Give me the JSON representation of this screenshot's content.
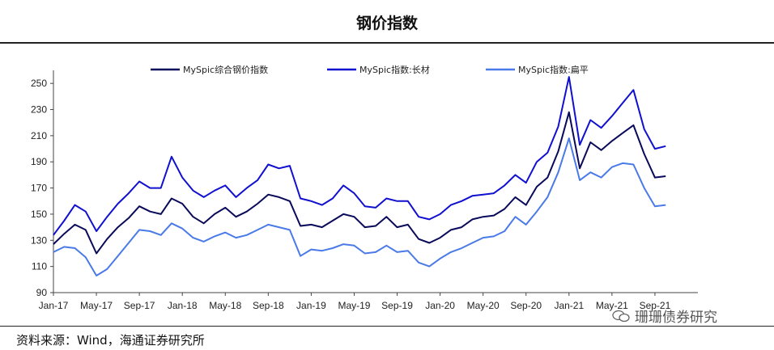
{
  "header": {
    "title": "钢价指数"
  },
  "footer": {
    "source": "资料来源：Wind，海通证券研究所",
    "watermark": "珊珊债券研究"
  },
  "chart_data": {
    "type": "line",
    "title": "钢价指数",
    "ylim": [
      90,
      260
    ],
    "yticks": [
      90,
      110,
      130,
      150,
      170,
      190,
      210,
      230,
      250
    ],
    "xticks": [
      "Jan-17",
      "May-17",
      "Sep-17",
      "Jan-18",
      "May-18",
      "Sep-18",
      "Jan-19",
      "May-19",
      "Sep-19",
      "Jan-20",
      "May-20",
      "Sep-20",
      "Jan-21",
      "May-21",
      "Sep-21"
    ],
    "xrange": [
      0,
      60
    ],
    "legend_position": "top",
    "series": [
      {
        "name": "MySpic综合钢价指数",
        "color": "#0a0a5a",
        "points": [
          [
            0,
            127
          ],
          [
            1,
            135
          ],
          [
            2,
            142
          ],
          [
            3,
            138
          ],
          [
            4,
            120
          ],
          [
            5,
            131
          ],
          [
            6,
            140
          ],
          [
            7,
            147
          ],
          [
            8,
            156
          ],
          [
            9,
            152
          ],
          [
            10,
            150
          ],
          [
            11,
            162
          ],
          [
            12,
            158
          ],
          [
            13,
            148
          ],
          [
            14,
            143
          ],
          [
            15,
            150
          ],
          [
            16,
            155
          ],
          [
            17,
            148
          ],
          [
            18,
            152
          ],
          [
            19,
            158
          ],
          [
            20,
            165
          ],
          [
            21,
            163
          ],
          [
            22,
            160
          ],
          [
            23,
            141
          ],
          [
            24,
            142
          ],
          [
            25,
            140
          ],
          [
            26,
            145
          ],
          [
            27,
            150
          ],
          [
            28,
            148
          ],
          [
            29,
            140
          ],
          [
            30,
            141
          ],
          [
            31,
            148
          ],
          [
            32,
            140
          ],
          [
            33,
            142
          ],
          [
            34,
            131
          ],
          [
            35,
            128
          ],
          [
            36,
            132
          ],
          [
            37,
            138
          ],
          [
            38,
            140
          ],
          [
            39,
            146
          ],
          [
            40,
            148
          ],
          [
            41,
            149
          ],
          [
            42,
            154
          ],
          [
            43,
            163
          ],
          [
            44,
            157
          ],
          [
            45,
            171
          ],
          [
            46,
            178
          ],
          [
            47,
            198
          ],
          [
            48,
            228
          ],
          [
            49,
            185
          ],
          [
            50,
            205
          ],
          [
            51,
            199
          ],
          [
            52,
            206
          ],
          [
            53,
            212
          ],
          [
            54,
            218
          ],
          [
            55,
            196
          ],
          [
            56,
            178
          ],
          [
            57,
            179
          ]
        ]
      },
      {
        "name": "MySpic指数:长材",
        "color": "#1010d0",
        "points": [
          [
            0,
            134
          ],
          [
            1,
            145
          ],
          [
            2,
            157
          ],
          [
            3,
            152
          ],
          [
            4,
            137
          ],
          [
            5,
            148
          ],
          [
            6,
            158
          ],
          [
            7,
            166
          ],
          [
            8,
            175
          ],
          [
            9,
            170
          ],
          [
            10,
            170
          ],
          [
            11,
            194
          ],
          [
            12,
            178
          ],
          [
            13,
            168
          ],
          [
            14,
            163
          ],
          [
            15,
            168
          ],
          [
            16,
            172
          ],
          [
            17,
            163
          ],
          [
            18,
            170
          ],
          [
            19,
            176
          ],
          [
            20,
            188
          ],
          [
            21,
            185
          ],
          [
            22,
            187
          ],
          [
            23,
            162
          ],
          [
            24,
            160
          ],
          [
            25,
            157
          ],
          [
            26,
            162
          ],
          [
            27,
            172
          ],
          [
            28,
            166
          ],
          [
            29,
            156
          ],
          [
            30,
            155
          ],
          [
            31,
            162
          ],
          [
            32,
            160
          ],
          [
            33,
            160
          ],
          [
            34,
            148
          ],
          [
            35,
            146
          ],
          [
            36,
            150
          ],
          [
            37,
            157
          ],
          [
            38,
            160
          ],
          [
            39,
            164
          ],
          [
            40,
            165
          ],
          [
            41,
            166
          ],
          [
            42,
            172
          ],
          [
            43,
            180
          ],
          [
            44,
            174
          ],
          [
            45,
            190
          ],
          [
            46,
            197
          ],
          [
            47,
            217
          ],
          [
            48,
            255
          ],
          [
            49,
            203
          ],
          [
            50,
            222
          ],
          [
            51,
            216
          ],
          [
            52,
            225
          ],
          [
            53,
            235
          ],
          [
            54,
            245
          ],
          [
            55,
            215
          ],
          [
            56,
            200
          ],
          [
            57,
            202
          ]
        ]
      },
      {
        "name": "MySpic指数:扁平",
        "color": "#4a7ae8",
        "points": [
          [
            0,
            121
          ],
          [
            1,
            125
          ],
          [
            2,
            124
          ],
          [
            3,
            117
          ],
          [
            4,
            103
          ],
          [
            5,
            108
          ],
          [
            6,
            118
          ],
          [
            7,
            128
          ],
          [
            8,
            138
          ],
          [
            9,
            137
          ],
          [
            10,
            134
          ],
          [
            11,
            143
          ],
          [
            12,
            139
          ],
          [
            13,
            132
          ],
          [
            14,
            129
          ],
          [
            15,
            133
          ],
          [
            16,
            136
          ],
          [
            17,
            132
          ],
          [
            18,
            134
          ],
          [
            19,
            138
          ],
          [
            20,
            142
          ],
          [
            21,
            140
          ],
          [
            22,
            138
          ],
          [
            23,
            118
          ],
          [
            24,
            123
          ],
          [
            25,
            122
          ],
          [
            26,
            124
          ],
          [
            27,
            127
          ],
          [
            28,
            126
          ],
          [
            29,
            120
          ],
          [
            30,
            121
          ],
          [
            31,
            126
          ],
          [
            32,
            121
          ],
          [
            33,
            122
          ],
          [
            34,
            113
          ],
          [
            35,
            110
          ],
          [
            36,
            116
          ],
          [
            37,
            121
          ],
          [
            38,
            124
          ],
          [
            39,
            128
          ],
          [
            40,
            132
          ],
          [
            41,
            133
          ],
          [
            42,
            137
          ],
          [
            43,
            148
          ],
          [
            44,
            142
          ],
          [
            45,
            152
          ],
          [
            46,
            163
          ],
          [
            47,
            182
          ],
          [
            48,
            208
          ],
          [
            49,
            176
          ],
          [
            50,
            182
          ],
          [
            51,
            178
          ],
          [
            52,
            186
          ],
          [
            53,
            189
          ],
          [
            54,
            188
          ],
          [
            55,
            170
          ],
          [
            56,
            156
          ],
          [
            57,
            157
          ]
        ]
      }
    ]
  }
}
